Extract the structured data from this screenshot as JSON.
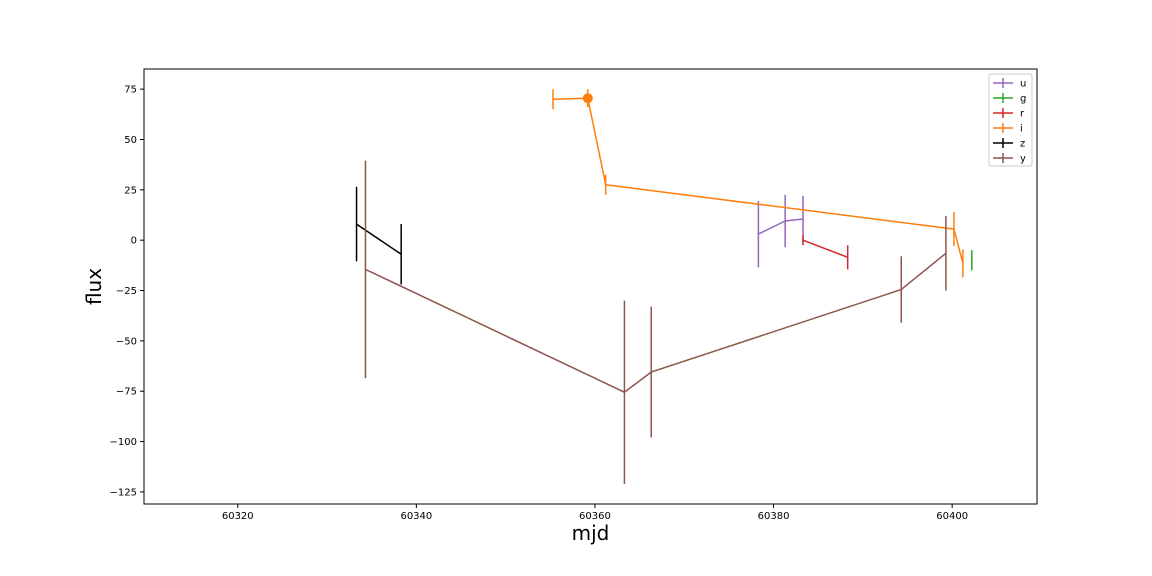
{
  "chart_data": {
    "type": "line",
    "xlabel": "mjd",
    "ylabel": "flux",
    "xlim": [
      60309.5,
      60409.5
    ],
    "ylim": [
      -131,
      85
    ],
    "xticks": [
      60320,
      60340,
      60360,
      60380,
      60400
    ],
    "yticks": [
      75,
      50,
      25,
      0,
      -25,
      -50,
      -75,
      -100,
      -125
    ],
    "xtick_labels": [
      "60320",
      "60340",
      "60360",
      "60380",
      "60400"
    ],
    "ytick_labels": [
      "75",
      "50",
      "25",
      "0",
      "−25",
      "−50",
      "−75",
      "−100",
      "−125"
    ],
    "grid": false,
    "legend_position": "upper-right",
    "series": [
      {
        "name": "u",
        "color": "#9467bd",
        "marker": false,
        "points": [
          {
            "x": 60378.3,
            "y": 3,
            "yerr": 16.5,
            "xerr": 0
          },
          {
            "x": 60381.3,
            "y": 9.5,
            "yerr": 13,
            "xerr": 0
          },
          {
            "x": 60383.3,
            "y": 10.5,
            "yerr": 11.5,
            "xerr": 0
          }
        ]
      },
      {
        "name": "g",
        "color": "#2ca02c",
        "marker": false,
        "points": [
          {
            "x": 60402.2,
            "y": -10,
            "yerr": 5,
            "xerr": 0
          }
        ]
      },
      {
        "name": "r",
        "color": "#d62728",
        "marker": false,
        "points": [
          {
            "x": 60383.3,
            "y": 0,
            "yerr": 2.5,
            "xerr": 0
          },
          {
            "x": 60388.3,
            "y": -8.5,
            "yerr": 6,
            "xerr": 0
          }
        ]
      },
      {
        "name": "i",
        "color": "#ff7f0e",
        "marker": true,
        "points": [
          {
            "x": 60355.3,
            "y": 70,
            "yerr": 5,
            "xerr": 0
          },
          {
            "x": 60359.2,
            "y": 70.5,
            "yerr": 4.5,
            "xerr": 0.3,
            "marker": true
          },
          {
            "x": 60361.2,
            "y": 27.5,
            "yerr": 5,
            "xerr": 0
          },
          {
            "x": 60400.2,
            "y": 5.5,
            "yerr": 8.5,
            "xerr": 0
          },
          {
            "x": 60401.2,
            "y": -11.5,
            "yerr": 7,
            "xerr": 0
          }
        ]
      },
      {
        "name": "z",
        "color": "#000000",
        "marker": false,
        "points": [
          {
            "x": 60333.3,
            "y": 8,
            "yerr": 18.5,
            "xerr": 0
          },
          {
            "x": 60338.3,
            "y": -7,
            "yerr": 15,
            "xerr": 0
          }
        ]
      },
      {
        "name": "y",
        "color": "#8c564b",
        "marker": false,
        "points": [
          {
            "x": 60334.3,
            "y": -14.5,
            "yerr": 54,
            "xerr": 0
          },
          {
            "x": 60363.3,
            "y": -75.5,
            "yerr": 45.5,
            "xerr": 0
          },
          {
            "x": 60366.3,
            "y": -65.5,
            "yerr": 32.5,
            "xerr": 0
          },
          {
            "x": 60394.3,
            "y": -24.5,
            "yerr": 16.5,
            "xerr": 0
          },
          {
            "x": 60399.3,
            "y": -6.5,
            "yerr": 18.5,
            "xerr": 0
          }
        ]
      }
    ]
  }
}
